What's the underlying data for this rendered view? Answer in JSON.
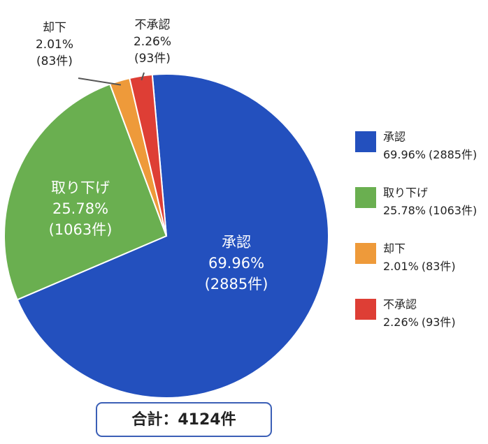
{
  "chart_data": {
    "type": "pie",
    "categories": [
      "承認",
      "取り下げ",
      "却下",
      "不承認"
    ],
    "values": [
      69.96,
      25.78,
      2.01,
      2.26
    ],
    "value_labels": [
      "69.96%",
      "25.78%",
      "2.01%",
      "2.26%"
    ],
    "counts": [
      {
        "value": 2885,
        "label": "(2885件)"
      },
      {
        "value": 1063,
        "label": "(1063件)"
      },
      {
        "value": 83,
        "label": "(83件)"
      },
      {
        "value": 93,
        "label": "(93件)"
      }
    ],
    "colors": [
      "#2350be",
      "#6aaf50",
      "#ee9a3a",
      "#de3e35"
    ],
    "total": {
      "value": 4124,
      "label": "合計：4124件"
    },
    "legend": "right"
  }
}
